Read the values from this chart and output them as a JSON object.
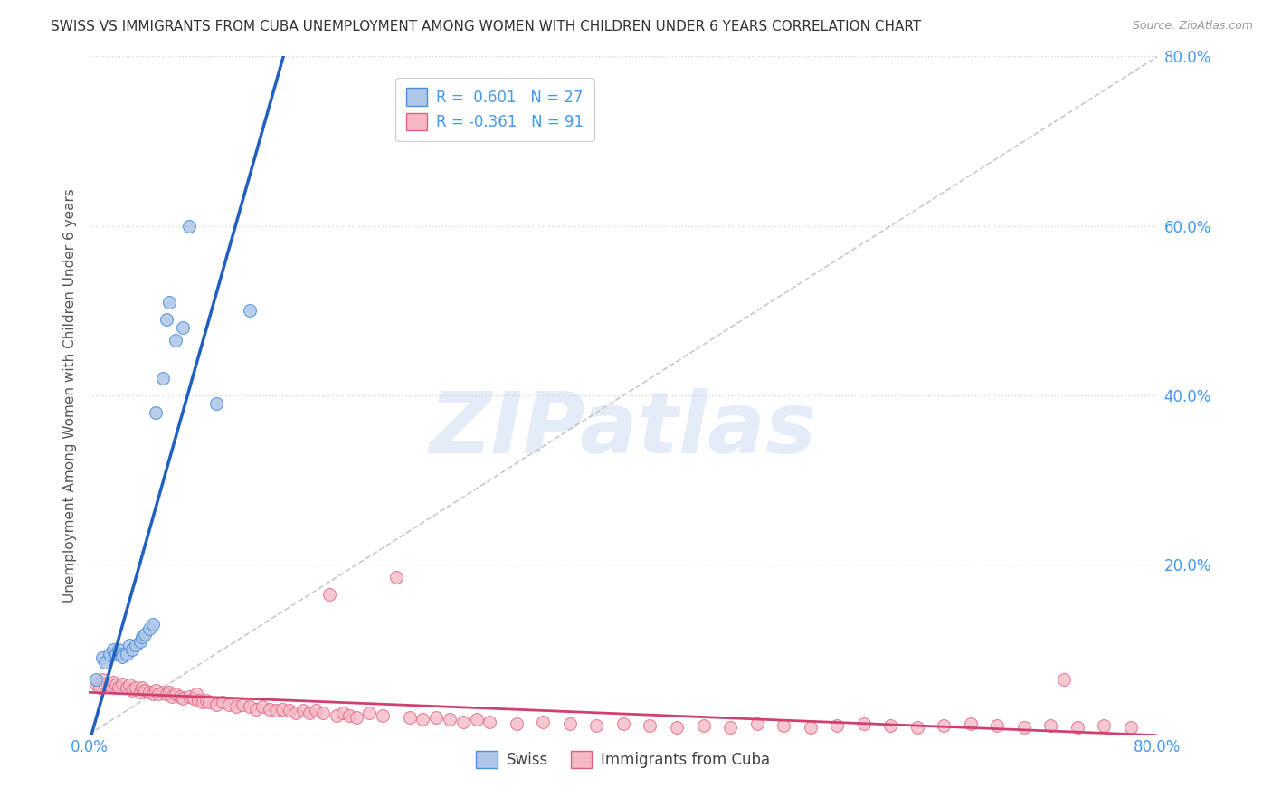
{
  "title": "SWISS VS IMMIGRANTS FROM CUBA UNEMPLOYMENT AMONG WOMEN WITH CHILDREN UNDER 6 YEARS CORRELATION CHART",
  "source": "Source: ZipAtlas.com",
  "ylabel": "Unemployment Among Women with Children Under 6 years",
  "xlim": [
    0.0,
    0.8
  ],
  "ylim": [
    0.0,
    0.8
  ],
  "ytick_vals": [
    0.0,
    0.2,
    0.4,
    0.6,
    0.8
  ],
  "ytick_labels": [
    "",
    "20.0%",
    "40.0%",
    "60.0%",
    "80.0%"
  ],
  "xtick_vals": [
    0.0,
    0.8
  ],
  "xtick_labels": [
    "0.0%",
    "80.0%"
  ],
  "swiss_R": 0.601,
  "swiss_N": 27,
  "cuba_R": -0.361,
  "cuba_N": 91,
  "swiss_fill_color": "#aec6e8",
  "cuba_fill_color": "#f4b8c4",
  "swiss_edge_color": "#4a90d9",
  "cuba_edge_color": "#e06080",
  "swiss_line_color": "#2060c0",
  "cuba_line_color": "#d04070",
  "diag_line_color": "#bbbbbb",
  "bg_color": "#ffffff",
  "grid_color": "#cccccc",
  "watermark": "ZIPatlas",
  "tick_color": "#4499ee",
  "title_color": "#333333",
  "source_color": "#999999",
  "ylabel_color": "#555555",
  "swiss_points": [
    [
      0.005,
      0.065
    ],
    [
      0.01,
      0.09
    ],
    [
      0.012,
      0.085
    ],
    [
      0.015,
      0.095
    ],
    [
      0.018,
      0.1
    ],
    [
      0.02,
      0.095
    ],
    [
      0.022,
      0.1
    ],
    [
      0.025,
      0.095
    ],
    [
      0.025,
      0.092
    ],
    [
      0.028,
      0.095
    ],
    [
      0.03,
      0.105
    ],
    [
      0.032,
      0.1
    ],
    [
      0.035,
      0.105
    ],
    [
      0.038,
      0.11
    ],
    [
      0.04,
      0.115
    ],
    [
      0.042,
      0.118
    ],
    [
      0.045,
      0.125
    ],
    [
      0.048,
      0.13
    ],
    [
      0.05,
      0.38
    ],
    [
      0.055,
      0.42
    ],
    [
      0.058,
      0.49
    ],
    [
      0.06,
      0.51
    ],
    [
      0.065,
      0.465
    ],
    [
      0.07,
      0.48
    ],
    [
      0.075,
      0.6
    ],
    [
      0.095,
      0.39
    ],
    [
      0.12,
      0.5
    ]
  ],
  "cuba_points": [
    [
      0.005,
      0.06
    ],
    [
      0.008,
      0.055
    ],
    [
      0.01,
      0.065
    ],
    [
      0.012,
      0.06
    ],
    [
      0.015,
      0.058
    ],
    [
      0.018,
      0.062
    ],
    [
      0.02,
      0.058
    ],
    [
      0.022,
      0.055
    ],
    [
      0.025,
      0.06
    ],
    [
      0.028,
      0.055
    ],
    [
      0.03,
      0.058
    ],
    [
      0.032,
      0.052
    ],
    [
      0.035,
      0.055
    ],
    [
      0.038,
      0.05
    ],
    [
      0.04,
      0.055
    ],
    [
      0.042,
      0.052
    ],
    [
      0.045,
      0.05
    ],
    [
      0.048,
      0.048
    ],
    [
      0.05,
      0.052
    ],
    [
      0.052,
      0.048
    ],
    [
      0.055,
      0.05
    ],
    [
      0.058,
      0.048
    ],
    [
      0.06,
      0.05
    ],
    [
      0.062,
      0.045
    ],
    [
      0.065,
      0.048
    ],
    [
      0.068,
      0.045
    ],
    [
      0.07,
      0.042
    ],
    [
      0.075,
      0.045
    ],
    [
      0.078,
      0.042
    ],
    [
      0.08,
      0.048
    ],
    [
      0.082,
      0.04
    ],
    [
      0.085,
      0.038
    ],
    [
      0.088,
      0.04
    ],
    [
      0.09,
      0.038
    ],
    [
      0.095,
      0.035
    ],
    [
      0.1,
      0.038
    ],
    [
      0.105,
      0.035
    ],
    [
      0.11,
      0.033
    ],
    [
      0.115,
      0.035
    ],
    [
      0.12,
      0.033
    ],
    [
      0.125,
      0.03
    ],
    [
      0.13,
      0.033
    ],
    [
      0.135,
      0.03
    ],
    [
      0.14,
      0.028
    ],
    [
      0.145,
      0.03
    ],
    [
      0.15,
      0.028
    ],
    [
      0.155,
      0.025
    ],
    [
      0.16,
      0.028
    ],
    [
      0.165,
      0.025
    ],
    [
      0.17,
      0.028
    ],
    [
      0.175,
      0.025
    ],
    [
      0.18,
      0.165
    ],
    [
      0.185,
      0.022
    ],
    [
      0.19,
      0.025
    ],
    [
      0.195,
      0.022
    ],
    [
      0.2,
      0.02
    ],
    [
      0.21,
      0.025
    ],
    [
      0.22,
      0.022
    ],
    [
      0.23,
      0.185
    ],
    [
      0.24,
      0.02
    ],
    [
      0.25,
      0.018
    ],
    [
      0.26,
      0.02
    ],
    [
      0.27,
      0.018
    ],
    [
      0.28,
      0.015
    ],
    [
      0.29,
      0.018
    ],
    [
      0.3,
      0.015
    ],
    [
      0.32,
      0.012
    ],
    [
      0.34,
      0.015
    ],
    [
      0.36,
      0.012
    ],
    [
      0.38,
      0.01
    ],
    [
      0.4,
      0.012
    ],
    [
      0.42,
      0.01
    ],
    [
      0.44,
      0.008
    ],
    [
      0.46,
      0.01
    ],
    [
      0.48,
      0.008
    ],
    [
      0.5,
      0.012
    ],
    [
      0.52,
      0.01
    ],
    [
      0.54,
      0.008
    ],
    [
      0.56,
      0.01
    ],
    [
      0.58,
      0.012
    ],
    [
      0.6,
      0.01
    ],
    [
      0.62,
      0.008
    ],
    [
      0.64,
      0.01
    ],
    [
      0.66,
      0.012
    ],
    [
      0.68,
      0.01
    ],
    [
      0.7,
      0.008
    ],
    [
      0.72,
      0.01
    ],
    [
      0.74,
      0.008
    ],
    [
      0.76,
      0.01
    ],
    [
      0.73,
      0.065
    ],
    [
      0.78,
      0.008
    ]
  ]
}
